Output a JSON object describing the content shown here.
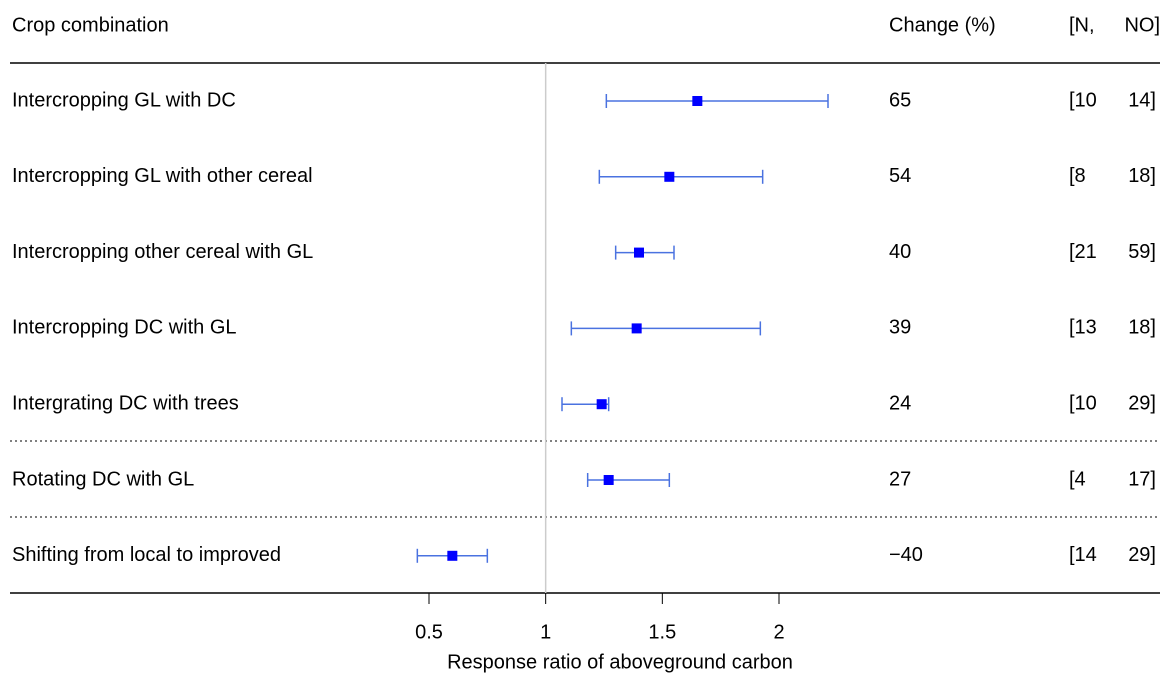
{
  "chart_data": {
    "type": "forest",
    "category_header": "Crop combination",
    "change_header": "Change (%)",
    "n_header": "[N,",
    "no_header": "NO]",
    "categories": [
      "Intercropping GL with DC",
      "Intercropping GL with other cereal",
      "Intercropping other cereal with GL",
      "Intercropping DC with GL",
      "Intergrating DC with trees",
      "Rotating DC with GL",
      "Shifting from local to improved"
    ],
    "values": [
      1.65,
      1.53,
      1.4,
      1.39,
      1.24,
      1.27,
      0.6
    ],
    "lower": [
      1.26,
      1.23,
      1.3,
      1.11,
      1.07,
      1.18,
      0.45
    ],
    "upper": [
      2.21,
      1.93,
      1.55,
      1.92,
      1.27,
      1.53,
      0.75
    ],
    "changes": [
      "65",
      "54",
      "40",
      "39",
      "24",
      "27",
      "−40"
    ],
    "n_labels": [
      "[10",
      "[8",
      "[21",
      "[13",
      "[10",
      "[4",
      "[14"
    ],
    "no_labels": [
      "14]",
      "18]",
      "59]",
      "18]",
      "29]",
      "17]",
      "29]"
    ],
    "point_color": "#0000ff",
    "whisker_color": "#4a72e0",
    "reference_line": 1,
    "xlim": [
      0.5,
      2
    ],
    "xticks": [
      0.5,
      1,
      1.5,
      2
    ],
    "xlabel": "Response ratio of aboveground carbon"
  }
}
